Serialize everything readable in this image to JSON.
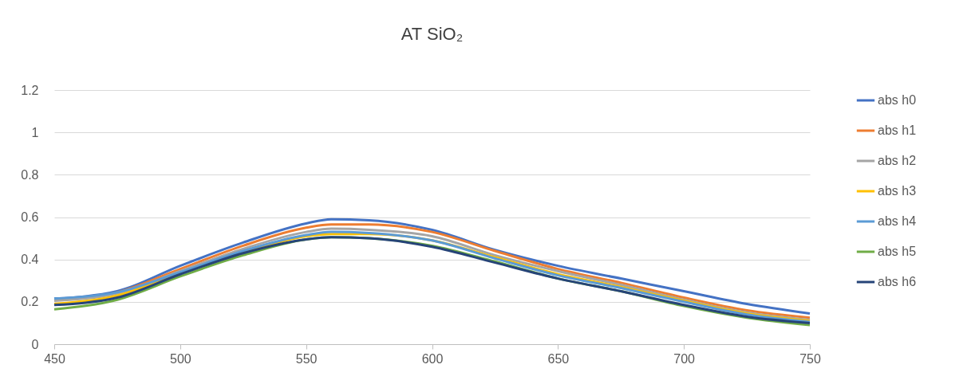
{
  "chart_data": {
    "type": "line",
    "title": "AT SiO₂",
    "x": [
      450,
      475,
      500,
      525,
      550,
      560,
      575,
      600,
      625,
      650,
      675,
      700,
      725,
      750
    ],
    "series": [
      {
        "name": "abs h0",
        "color": "#4472c4",
        "values": [
          0.215,
          0.25,
          0.37,
          0.48,
          0.57,
          0.59,
          0.585,
          0.54,
          0.445,
          0.37,
          0.31,
          0.25,
          0.19,
          0.145
        ]
      },
      {
        "name": "abs h1",
        "color": "#ed7d31",
        "values": [
          0.21,
          0.245,
          0.355,
          0.465,
          0.55,
          0.565,
          0.565,
          0.53,
          0.44,
          0.355,
          0.29,
          0.22,
          0.16,
          0.125
        ]
      },
      {
        "name": "abs h2",
        "color": "#a5a5a5",
        "values": [
          0.205,
          0.24,
          0.345,
          0.45,
          0.53,
          0.545,
          0.54,
          0.51,
          0.42,
          0.345,
          0.28,
          0.21,
          0.15,
          0.115
        ]
      },
      {
        "name": "abs h3",
        "color": "#ffc000",
        "values": [
          0.19,
          0.23,
          0.335,
          0.43,
          0.51,
          0.52,
          0.52,
          0.49,
          0.41,
          0.33,
          0.27,
          0.205,
          0.145,
          0.11
        ]
      },
      {
        "name": "abs h4",
        "color": "#5b9bd5",
        "values": [
          0.215,
          0.245,
          0.34,
          0.44,
          0.515,
          0.53,
          0.525,
          0.49,
          0.405,
          0.325,
          0.265,
          0.2,
          0.14,
          0.105
        ]
      },
      {
        "name": "abs h5",
        "color": "#70ad47",
        "values": [
          0.165,
          0.21,
          0.32,
          0.42,
          0.495,
          0.505,
          0.5,
          0.465,
          0.39,
          0.31,
          0.25,
          0.18,
          0.125,
          0.09
        ]
      },
      {
        "name": "abs h6",
        "color": "#264478",
        "values": [
          0.185,
          0.22,
          0.33,
          0.43,
          0.495,
          0.505,
          0.5,
          0.46,
          0.385,
          0.31,
          0.25,
          0.185,
          0.13,
          0.1
        ]
      }
    ],
    "xlim": [
      450,
      750
    ],
    "xticks": [
      450,
      500,
      550,
      600,
      650,
      700,
      750
    ],
    "ylim": [
      0,
      1.2
    ],
    "yticks": [
      0,
      0.2,
      0.4,
      0.6,
      0.8,
      1,
      1.2
    ],
    "grid": "y",
    "legend": "right",
    "marker": "none",
    "line_style": "solid"
  }
}
